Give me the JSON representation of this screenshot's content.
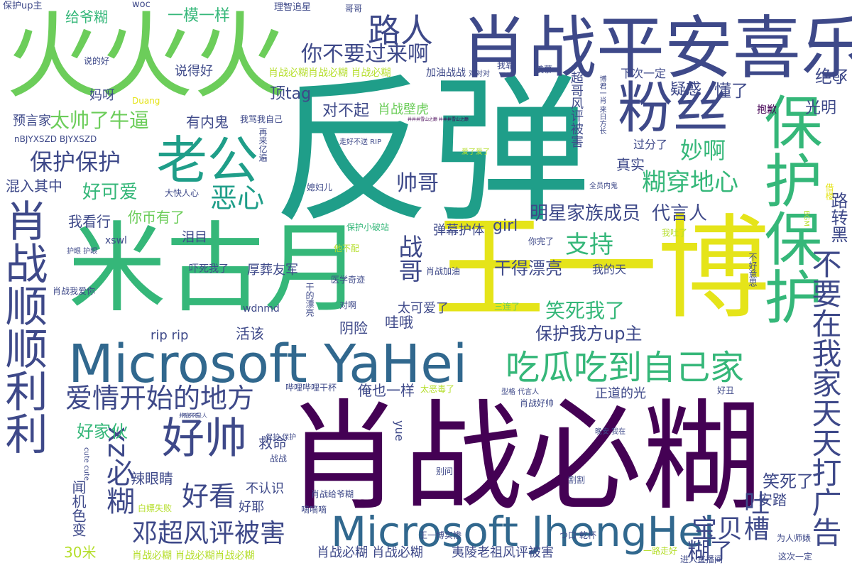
{
  "palette": {
    "green": "#6ccd5a",
    "yellow_green": "#b5de2b",
    "yellow": "#e5e419",
    "teal": "#1f9e89",
    "teal_light": "#35b779",
    "blue": "#31688e",
    "navy": "#3e4989",
    "indigo": "#482878",
    "purple": "#440154",
    "cyan": "#26828e"
  },
  "words": [
    {
      "text": "火火火",
      "color": "#6ccd5a"
    },
    {
      "text": "反弹",
      "color": "#1f9e89"
    },
    {
      "text": "肖战平安喜乐",
      "color": "#3e4989"
    },
    {
      "text": "米古月",
      "color": "#35b779"
    },
    {
      "text": "王一博",
      "color": "#e5e419"
    },
    {
      "text": "肖战必糊",
      "color": "#440154"
    },
    {
      "text": "Microsoft YaHei",
      "color": "#31688e"
    },
    {
      "text": "Microsoft JhengHei",
      "color": "#31688e"
    },
    {
      "text": "保护保护",
      "color": "#35b779"
    },
    {
      "text": "肖战顺顺利利",
      "color": "#3e4989"
    },
    {
      "text": "粉丝",
      "color": "#3e4989"
    },
    {
      "text": "老公",
      "color": "#1f9e89"
    },
    {
      "text": "好帅",
      "color": "#3e4989"
    },
    {
      "text": "路人",
      "color": "#3e4989"
    },
    {
      "text": "吃瓜吃到自己家",
      "color": "#35b779"
    },
    {
      "text": "爱情开始的地方",
      "color": "#3e4989"
    },
    {
      "text": "不要在我家天天打广告",
      "color": "#3e4989"
    },
    {
      "text": "战哥",
      "color": "#3e4989"
    },
    {
      "text": "xz必糊",
      "color": "#3e4989"
    },
    {
      "text": "邓超风评被害",
      "color": "#3e4989"
    },
    {
      "text": "你不要过来啊",
      "color": "#3e4989"
    },
    {
      "text": "太帅了牛逼",
      "color": "#6ccd5a"
    },
    {
      "text": "保护保护",
      "color": "#3e4989"
    },
    {
      "text": "好可爱",
      "color": "#35b779"
    },
    {
      "text": "恶心",
      "color": "#1f9e89"
    },
    {
      "text": "妙啊",
      "color": "#35b779"
    },
    {
      "text": "糊穿地心",
      "color": "#35b779"
    },
    {
      "text": "支持",
      "color": "#35b779"
    },
    {
      "text": "帅哥",
      "color": "#3e4989"
    },
    {
      "text": "明星家族成员",
      "color": "#3e4989"
    },
    {
      "text": "代言人",
      "color": "#3e4989"
    },
    {
      "text": "干得漂亮",
      "color": "#3e4989"
    },
    {
      "text": "笑死我了",
      "color": "#35b779"
    },
    {
      "text": "保护我方up主",
      "color": "#3e4989"
    },
    {
      "text": "好家伙",
      "color": "#35b779"
    },
    {
      "text": "好看",
      "color": "#3e4989"
    },
    {
      "text": "宝贝",
      "color": "#3e4989"
    },
    {
      "text": "糊了",
      "color": "#3e4989"
    },
    {
      "text": "吐槽",
      "color": "#3e4989"
    },
    {
      "text": "笑死了",
      "color": "#3e4989"
    },
    {
      "text": "闻机色变",
      "color": "#3e4989"
    },
    {
      "text": "一模一样",
      "color": "#35b779"
    },
    {
      "text": "给爷糊",
      "color": "#35b779"
    },
    {
      "text": "顶tag",
      "color": "#3e4989"
    },
    {
      "text": "有内鬼",
      "color": "#3e4989"
    },
    {
      "text": "对不起",
      "color": "#3e4989"
    },
    {
      "text": "肖战壁虎",
      "color": "#6ccd5a"
    },
    {
      "text": "疑惑",
      "color": "#3e4989"
    },
    {
      "text": "懂了",
      "color": "#3e4989"
    },
    {
      "text": "绝了",
      "color": "#3e4989"
    },
    {
      "text": "光明",
      "color": "#3e4989"
    },
    {
      "text": "真实",
      "color": "#3e4989"
    },
    {
      "text": "混入其中",
      "color": "#3e4989"
    },
    {
      "text": "你币有了",
      "color": "#6ccd5a"
    },
    {
      "text": "我看行",
      "color": "#3e4989"
    },
    {
      "text": "girl",
      "color": "#3e4989"
    },
    {
      "text": "弹幕护体",
      "color": "#3e4989"
    },
    {
      "text": "路转黑",
      "color": "#3e4989"
    },
    {
      "text": "辣眼睛",
      "color": "#3e4989"
    },
    {
      "text": "救命",
      "color": "#3e4989"
    },
    {
      "text": "好耶",
      "color": "#3e4989"
    },
    {
      "text": "不认识",
      "color": "#3e4989"
    },
    {
      "text": "安踏",
      "color": "#3e4989"
    },
    {
      "text": "30米",
      "color": "#b5de2b"
    },
    {
      "text": "厚葬友军",
      "color": "#3e4989"
    },
    {
      "text": "阴险",
      "color": "#3e4989"
    },
    {
      "text": "哇哦",
      "color": "#3e4989"
    },
    {
      "text": "活该",
      "color": "#3e4989"
    },
    {
      "text": "太可爱了",
      "color": "#3e4989"
    },
    {
      "text": "正道的光",
      "color": "#3e4989"
    },
    {
      "text": "俺也一样",
      "color": "#3e4989"
    },
    {
      "text": "肖战必糊 肖战必糊",
      "color": "#3e4989"
    },
    {
      "text": "夷陵老祖风评被害",
      "color": "#3e4989"
    },
    {
      "text": "肖战必糊肖战必糊 肖战必糊",
      "color": "#b5de2b"
    },
    {
      "text": "超哥风评被害",
      "color": "#3e4989"
    },
    {
      "text": "说得好",
      "color": "#3e4989"
    },
    {
      "text": "预言家",
      "color": "#3e4989"
    },
    {
      "text": "妈呀",
      "color": "#3e4989"
    },
    {
      "text": "泪目",
      "color": "#3e4989"
    },
    {
      "text": "我的天",
      "color": "#3e4989"
    },
    {
      "text": "rip rip",
      "color": "#3e4989"
    },
    {
      "text": "wdnmd",
      "color": "#3e4989"
    },
    {
      "text": "xswl",
      "color": "#3e4989"
    },
    {
      "text": "下次一定",
      "color": "#3e4989"
    },
    {
      "text": "过分了",
      "color": "#3e4989"
    },
    {
      "text": "ex",
      "color": "#3e4989"
    },
    {
      "text": "抱歉",
      "color": "#440154"
    },
    {
      "text": "yue",
      "color": "#3e4989"
    },
    {
      "text": "吓死我了",
      "color": "#3e4989"
    },
    {
      "text": "肖战必糊 肖战必糊肖战必糊",
      "color": "#b5de2b"
    },
    {
      "text": "保护up主",
      "color": "#3e4989"
    },
    {
      "text": "woc",
      "color": "#3e4989"
    },
    {
      "text": "理智追星",
      "color": "#3e4989"
    },
    {
      "text": "哥哥",
      "color": "#3e4989"
    },
    {
      "text": "说的好",
      "color": "#3e4989"
    },
    {
      "text": "Duang",
      "color": "#e5e419"
    },
    {
      "text": "nBJYXSZD BJYXSZD",
      "color": "#3e4989"
    },
    {
      "text": "我骂我自己",
      "color": "#3e4989"
    },
    {
      "text": "加油战战",
      "color": "#3e4989"
    },
    {
      "text": "对对对",
      "color": "#3e4989"
    },
    {
      "text": "我靠",
      "color": "#3e4989"
    },
    {
      "text": "羡慕",
      "color": "#3e4989"
    },
    {
      "text": "走好不送 RIP",
      "color": "#3e4989"
    },
    {
      "text": "再来亿遍",
      "color": "#3e4989"
    },
    {
      "text": "媳妇儿",
      "color": "#3e4989"
    },
    {
      "text": "爱了爱了",
      "color": "#b5de2b"
    },
    {
      "text": "全员内鬼",
      "color": "#3e4989"
    },
    {
      "text": "借楼",
      "color": "#e5e419"
    },
    {
      "text": "BGM",
      "color": "#b5de2b"
    },
    {
      "text": "大快人心",
      "color": "#3e4989"
    },
    {
      "text": "保护小破站",
      "color": "#35b779"
    },
    {
      "text": "他不配",
      "color": "#b5de2b"
    },
    {
      "text": "你完了",
      "color": "#3e4989"
    },
    {
      "text": "我吐了",
      "color": "#b5de2b"
    },
    {
      "text": "护眼 护眼",
      "color": "#3e4989"
    },
    {
      "text": "肖战加油",
      "color": "#3e4989"
    },
    {
      "text": "医学奇迹",
      "color": "#3e4989"
    },
    {
      "text": "不好意思",
      "color": "#3e4989"
    },
    {
      "text": "干的漂亮",
      "color": "#3e4989"
    },
    {
      "text": "对啊",
      "color": "#3e4989"
    },
    {
      "text": "三连了",
      "color": "#6ccd5a"
    },
    {
      "text": "肖战我爱你",
      "color": "#3e4989"
    },
    {
      "text": "哔哩哔哩干杯",
      "color": "#3e4989"
    },
    {
      "text": "太恶毒了",
      "color": "#b5de2b"
    },
    {
      "text": "型格 代言人",
      "color": "#3e4989"
    },
    {
      "text": "好丑",
      "color": "#3e4989"
    },
    {
      "text": "肖战好帅",
      "color": "#3e4989"
    },
    {
      "text": "晚安 我在",
      "color": "#3e4989"
    },
    {
      "text": "保护 保护",
      "color": "#3e4989"
    },
    {
      "text": "cute cute",
      "color": "#3e4989"
    },
    {
      "text": "战战",
      "color": "#3e4989"
    },
    {
      "text": "别问",
      "color": "#3e4989"
    },
    {
      "text": "割割",
      "color": "#3e4989"
    },
    {
      "text": "白嫖失败",
      "color": "#b5de2b"
    },
    {
      "text": "肖战给爷糊",
      "color": "#3e4989"
    },
    {
      "text": "嘀嘀嘀",
      "color": "#3e4989"
    },
    {
      "text": "王一博实惨",
      "color": "#3e4989"
    },
    {
      "text": "つ口 乾杯",
      "color": "#3e4989"
    },
    {
      "text": "为人师婊",
      "color": "#3e4989"
    },
    {
      "text": "一路走好",
      "color": "#b5de2b"
    },
    {
      "text": "进入直播间",
      "color": "#3e4989"
    },
    {
      "text": "这次一定",
      "color": "#3e4989"
    },
    {
      "text": "博君一肖 来日方长",
      "color": "#3e4989"
    },
    {
      "text": "井底不是人",
      "color": "#3e4989"
    },
    {
      "text": "井井井雪山之巅 井井井雪山之巅",
      "color": "#440154"
    },
    {
      "text": "不不不",
      "color": "#3e4989"
    }
  ]
}
